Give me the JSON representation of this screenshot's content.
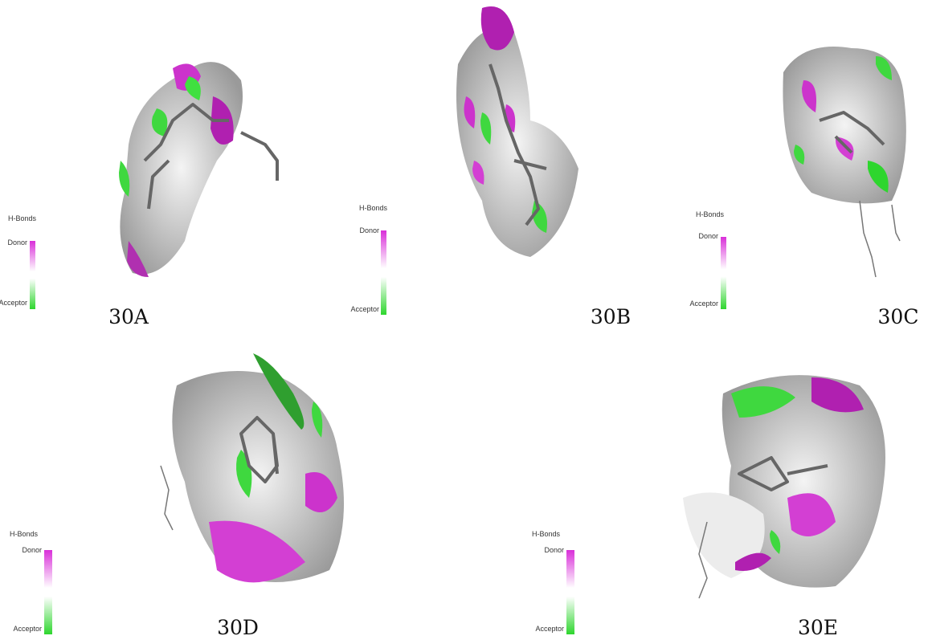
{
  "panels": [
    {
      "caption": "30A",
      "legend": {
        "title": "H-Bonds",
        "top": "Donor",
        "bottom": "Acceptor"
      }
    },
    {
      "caption": "30B",
      "legend": {
        "title": "H-Bonds",
        "top": "Donor",
        "bottom": "Acceptor"
      }
    },
    {
      "caption": "30C",
      "legend": {
        "title": "H-Bonds",
        "top": "Donor",
        "bottom": "Acceptor"
      }
    },
    {
      "caption": "30D",
      "legend": {
        "title": "H-Bonds",
        "top": "Donor",
        "bottom": "Acceptor"
      }
    },
    {
      "caption": "30E",
      "legend": {
        "title": "H-Bonds",
        "top": "Donor",
        "bottom": "Acceptor"
      }
    }
  ]
}
